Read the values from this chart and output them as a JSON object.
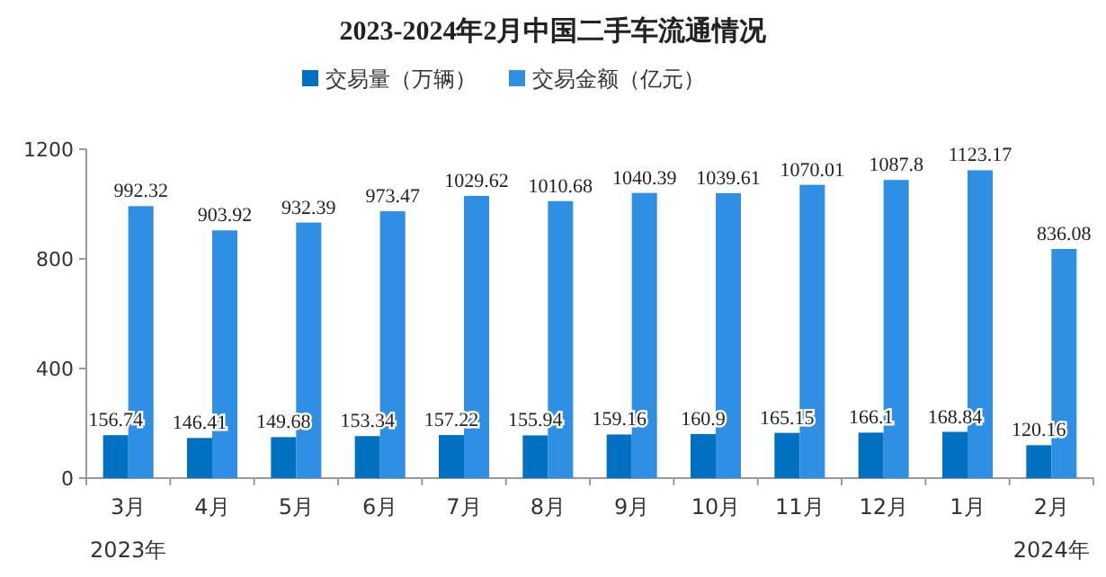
{
  "chart_data": {
    "type": "bar",
    "title": "2023-2024年2月中国二手车流通情况",
    "categories": [
      "3月",
      "4月",
      "5月",
      "6月",
      "7月",
      "8月",
      "9月",
      "10月",
      "11月",
      "12月",
      "1月",
      "2月"
    ],
    "series": [
      {
        "name": "交易量（万辆）",
        "color": "#0070c0",
        "values": [
          156.74,
          146.41,
          149.68,
          153.34,
          157.22,
          155.94,
          159.16,
          160.9,
          165.15,
          166.1,
          168.84,
          120.16
        ]
      },
      {
        "name": "交易金额（亿元）",
        "color": "#2e8fe3",
        "values": [
          992.32,
          903.92,
          932.39,
          973.47,
          1029.62,
          1010.68,
          1040.39,
          1039.61,
          1070.01,
          1087.8,
          1123.17,
          836.08
        ]
      }
    ],
    "ylim": [
      0,
      1200
    ],
    "yticks": [
      0,
      400,
      800,
      1200
    ],
    "data_labels": true,
    "legend": "top",
    "grid": false,
    "annotations": [
      "2023年",
      "2024年"
    ]
  }
}
